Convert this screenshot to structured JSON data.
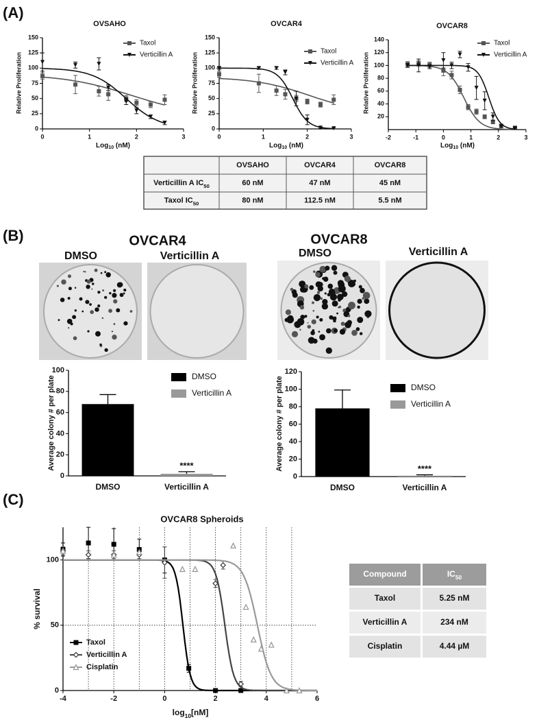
{
  "panel_labels": [
    "(A)",
    "(B)",
    "(C)"
  ],
  "chart_data": [
    {
      "type": "line",
      "title": "OVSAHO",
      "xlabel": [
        "Log",
        "10",
        " (nM)"
      ],
      "ylabel": "Relative Proliferation",
      "xlim": [
        0,
        3
      ],
      "xticks": [
        0,
        1,
        2,
        3
      ],
      "ylim": [
        0,
        150
      ],
      "yticks": [
        0,
        25,
        50,
        75,
        100,
        125,
        150
      ],
      "series": [
        {
          "name": "Taxol",
          "color": "#555555",
          "marker": "square",
          "x": [
            0,
            0.7,
            1.2,
            1.4,
            1.78,
            2.0,
            2.3,
            2.6
          ],
          "values": [
            87,
            73,
            62,
            57,
            50,
            43,
            40,
            48
          ],
          "errors": [
            5,
            15,
            8,
            10,
            5,
            5,
            5,
            8
          ],
          "fit": {
            "top": 90,
            "bottom": 20,
            "logic50": 1.9,
            "hill": 0.6
          }
        },
        {
          "name": "Verticillin A",
          "color": "#111111",
          "marker": "triangle-down",
          "x": [
            0,
            0.7,
            1.2,
            1.4,
            1.78,
            2.0,
            2.3,
            2.6
          ],
          "values": [
            110,
            105,
            107,
            68,
            45,
            30,
            20,
            10
          ],
          "errors": [
            15,
            5,
            10,
            5,
            5,
            5,
            3,
            3
          ],
          "fit": {
            "top": 100,
            "bottom": 0,
            "logic50": 1.78,
            "hill": 1.2
          }
        }
      ]
    },
    {
      "type": "line",
      "title": "OVCAR4",
      "xlabel": [
        "Log",
        "10",
        " (nM)"
      ],
      "ylabel": "Relative Proliferation",
      "xlim": [
        0,
        3
      ],
      "xticks": [
        0,
        1,
        2,
        3
      ],
      "ylim": [
        0,
        150
      ],
      "yticks": [
        0,
        25,
        50,
        75,
        100,
        125,
        150
      ],
      "series": [
        {
          "name": "Taxol",
          "color": "#555555",
          "marker": "square",
          "x": [
            0,
            0.9,
            1.3,
            1.5,
            1.75,
            2.0,
            2.3,
            2.6
          ],
          "values": [
            90,
            75,
            63,
            57,
            50,
            45,
            40,
            48
          ],
          "errors": [
            5,
            15,
            8,
            8,
            5,
            4,
            4,
            8
          ],
          "fit": {
            "top": 85,
            "bottom": 25,
            "logic50": 2.05,
            "hill": 0.7
          }
        },
        {
          "name": "Verticillin A",
          "color": "#111111",
          "marker": "triangle-down",
          "x": [
            0,
            0.9,
            1.3,
            1.5,
            1.75,
            2.0,
            2.3,
            2.6
          ],
          "values": [
            100,
            100,
            100,
            93,
            50,
            15,
            2,
            1
          ],
          "errors": [
            2,
            2,
            2,
            4,
            12,
            8,
            1,
            1
          ],
          "fit": {
            "top": 100,
            "bottom": 0,
            "logic50": 1.67,
            "hill": 2.5
          }
        }
      ]
    },
    {
      "type": "line",
      "title": "OVCAR8",
      "xlabel": [
        "Log",
        "10",
        " (nM)"
      ],
      "ylabel": "Relative Proliferation",
      "xlim": [
        -2,
        3
      ],
      "xticks": [
        -2,
        -1,
        0,
        1,
        2,
        3
      ],
      "ylim": [
        0,
        140
      ],
      "yticks": [
        20,
        40,
        60,
        80,
        100,
        120,
        140
      ],
      "series": [
        {
          "name": "Taxol",
          "color": "#555555",
          "marker": "square",
          "x": [
            -1.3,
            -0.9,
            -0.5,
            0,
            0.3,
            0.6,
            0.9,
            1.2,
            1.5,
            1.8,
            2.1,
            2.6
          ],
          "values": [
            102,
            103,
            101,
            92,
            85,
            62,
            35,
            28,
            20,
            12,
            6,
            3
          ],
          "errors": [
            4,
            4,
            4,
            8,
            6,
            6,
            4,
            4,
            3,
            3,
            2,
            1
          ],
          "fit": {
            "top": 100,
            "bottom": 0,
            "logic50": 0.74,
            "hill": 1.5
          }
        },
        {
          "name": "Verticillin A",
          "color": "#111111",
          "marker": "triangle-down",
          "x": [
            -1.3,
            -0.9,
            -0.5,
            0,
            0.3,
            0.6,
            0.9,
            1.2,
            1.5,
            1.8,
            2.1,
            2.6
          ],
          "values": [
            100,
            100,
            98,
            108,
            100,
            117,
            97,
            65,
            45,
            20,
            5,
            2
          ],
          "errors": [
            3,
            10,
            3,
            12,
            5,
            5,
            6,
            18,
            14,
            6,
            2,
            1
          ],
          "fit": {
            "top": 100,
            "bottom": 0,
            "logic50": 1.65,
            "hill": 2.2
          }
        }
      ]
    },
    {
      "type": "bar",
      "ylabel": "Average colony # per plate",
      "categories": [
        "DMSO",
        "Verticillin A"
      ],
      "values": [
        68,
        2
      ],
      "errors": [
        9,
        2
      ],
      "colors": [
        "#000000",
        "#999999"
      ],
      "ylim": [
        0,
        100
      ],
      "yticks": [
        0,
        20,
        40,
        60,
        80,
        100
      ],
      "annotation": "****"
    },
    {
      "type": "bar",
      "ylabel": "Average colony # per plate",
      "categories": [
        "DMSO",
        "Verticillin A"
      ],
      "values": [
        78,
        1
      ],
      "errors": [
        21,
        1
      ],
      "colors": [
        "#000000",
        "#999999"
      ],
      "ylim": [
        0,
        120
      ],
      "yticks": [
        0,
        20,
        40,
        60,
        80,
        100,
        120
      ],
      "annotation": "****"
    },
    {
      "type": "line",
      "title": "OVCAR8 Spheroids",
      "xlabel": [
        "log",
        "10",
        "[nM]"
      ],
      "ylabel": "% survival",
      "xlim": [
        -4,
        6
      ],
      "xticks": [
        -4,
        -2,
        0,
        2,
        4,
        6
      ],
      "ylim": [
        0,
        125
      ],
      "yticks": [
        0,
        50,
        100
      ],
      "ref_x": [
        -3,
        -2,
        -1,
        0,
        1,
        2,
        3,
        4,
        5
      ],
      "ref_y": [
        50
      ],
      "series": [
        {
          "name": "Taxol",
          "color": "#000000",
          "marker": "square",
          "x": [
            -4,
            -3,
            -2,
            -1,
            0,
            0.95,
            2,
            3
          ],
          "values": [
            108,
            113,
            112,
            108,
            100,
            17,
            0,
            0
          ],
          "errors": [
            5,
            12,
            12,
            8,
            10,
            3,
            0,
            0
          ],
          "fit": {
            "top": 100,
            "bottom": 0,
            "logic50": 0.72,
            "hill": 3
          }
        },
        {
          "name": "Verticillin A",
          "color": "#444444",
          "marker": "diamond-open",
          "x": [
            -4,
            -3,
            -2,
            -1,
            0,
            2,
            2.3,
            3
          ],
          "values": [
            107,
            104,
            104,
            104,
            98,
            82,
            96,
            5
          ],
          "errors": [
            3,
            3,
            3,
            3,
            12,
            3,
            3,
            2
          ],
          "fit": {
            "top": 100,
            "bottom": 0,
            "logic50": 2.37,
            "hill": 2.5
          }
        },
        {
          "name": "Cisplatin",
          "color": "#999999",
          "marker": "triangle-open",
          "x": [
            -4,
            -2,
            -1,
            0.7,
            1.2,
            2.7,
            3.2,
            3.5,
            3.8,
            4.2,
            4.8,
            5.3
          ],
          "values": [
            107,
            104,
            106,
            93,
            93,
            111,
            64,
            39,
            32,
            35,
            0,
            0
          ],
          "fit": {
            "top": 100,
            "bottom": 0,
            "logic50": 3.65,
            "hill": 1.6
          }
        }
      ]
    }
  ],
  "table_a": {
    "columns": [
      "OVSAHO",
      "OVCAR4",
      "OVCAR8"
    ],
    "rows": [
      {
        "label": [
          "Verticillin A IC",
          "50"
        ],
        "cells": [
          "60 nM",
          "47 nM",
          "45 nM"
        ]
      },
      {
        "label": [
          "Taxol IC",
          "50"
        ],
        "cells": [
          "80 nM",
          "112.5 nM",
          "5.5 nM"
        ]
      }
    ]
  },
  "colony_plates": [
    {
      "title": "OVCAR4",
      "conditions": [
        "DMSO",
        "Verticillin A"
      ]
    },
    {
      "title": "OVCAR8",
      "conditions": [
        "DMSO",
        "Verticillin A"
      ]
    }
  ],
  "table_c": {
    "columns": [
      [
        "Compound"
      ],
      [
        "IC",
        "50"
      ]
    ],
    "rows": [
      [
        "Taxol",
        "5.25 nM"
      ],
      [
        "Verticillin A",
        "234 nM"
      ],
      [
        "Cisplatin",
        "4.44 µM"
      ]
    ]
  }
}
